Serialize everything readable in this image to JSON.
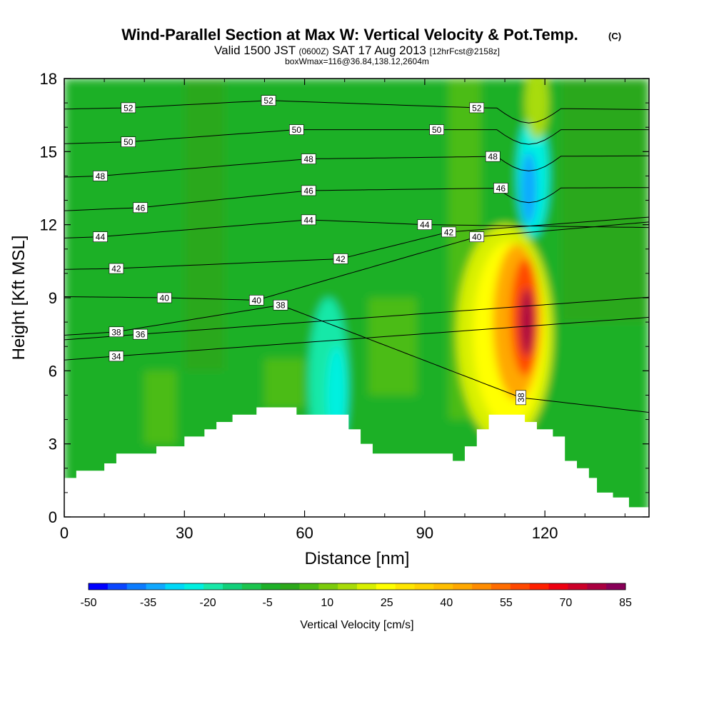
{
  "header": {
    "title": "Wind-Parallel Section at Max W: Vertical Velocity & Pot.Temp.",
    "copyright_mark": "(C)",
    "valid_prefix": "Valid 1500 JST",
    "valid_zulu": "(0600Z)",
    "valid_date": "SAT 17 Aug 2013",
    "forecast_info": "[12hrFcst@2158z]",
    "box_info": "boxWmax=116@36.84,138.12,2604m"
  },
  "chart_data": {
    "type": "contour",
    "xlabel": "Distance [nm]",
    "ylabel": "Height [Kft MSL]",
    "xlim": [
      0,
      146
    ],
    "ylim": [
      0,
      18
    ],
    "x_ticks": [
      "0",
      "30",
      "60",
      "90",
      "120"
    ],
    "y_ticks": [
      "0",
      "3",
      "6",
      "9",
      "12",
      "15",
      "18"
    ],
    "x_tick_values": [
      0,
      30,
      60,
      90,
      120
    ],
    "y_tick_values": [
      0,
      3,
      6,
      9,
      12,
      15,
      18
    ],
    "colorbar": {
      "label": "Vertical Velocity [cm/s]",
      "tick_labels": [
        "-50",
        "-35",
        "-20",
        "-5",
        "10",
        "25",
        "40",
        "55",
        "70",
        "85"
      ],
      "min": -50,
      "max": 85,
      "step": 5,
      "colors": [
        "#0000ff",
        "#0a46ff",
        "#0c7cff",
        "#10a8ff",
        "#00d8f8",
        "#00f0e0",
        "#18e8a8",
        "#12d07a",
        "#1cc44e",
        "#1eb028",
        "#2ca81a",
        "#4cbc14",
        "#7ccc0c",
        "#a8dc08",
        "#d8f000",
        "#ffff00",
        "#ffe600",
        "#ffd200",
        "#ffbe00",
        "#ffa800",
        "#ff8c00",
        "#ff6c00",
        "#ff4800",
        "#ff2000",
        "#ee0010",
        "#cc0028",
        "#aa0040",
        "#880058"
      ]
    },
    "fields": {
      "background_w": 0,
      "w_cells": [
        {
          "x0": 0,
          "x1": 146,
          "y0": 0,
          "y1": 18,
          "w": -2
        },
        {
          "x0": 30,
          "x1": 40,
          "y0": 6,
          "y1": 18,
          "w": 2
        },
        {
          "x0": 96,
          "x1": 104,
          "y0": 4,
          "y1": 18,
          "w": 5
        },
        {
          "x0": 124,
          "x1": 146,
          "y0": 8,
          "y1": 18,
          "w": 4
        },
        {
          "x0": 20,
          "x1": 28,
          "y0": 3,
          "y1": 6,
          "w": 9
        },
        {
          "x0": 50,
          "x1": 60,
          "y0": 4.5,
          "y1": 6.5,
          "w": 7
        },
        {
          "x0": 76,
          "x1": 88,
          "y0": 5,
          "y1": 9,
          "w": 5
        }
      ],
      "w_blobs": [
        {
          "cx": 66,
          "cy": 5.5,
          "rx": 5,
          "ry": 3.5,
          "w": -18
        },
        {
          "cx": 68,
          "cy": 5,
          "rx": 2.5,
          "ry": 2,
          "w": -22
        },
        {
          "cx": 117,
          "cy": 14,
          "rx": 4,
          "ry": 2.5,
          "w": -22
        },
        {
          "cx": 116,
          "cy": 13.5,
          "rx": 2,
          "ry": 1.5,
          "w": -32
        },
        {
          "cx": 118,
          "cy": 17,
          "rx": 3,
          "ry": 1.5,
          "w": 15
        },
        {
          "cx": 110,
          "cy": 7.5,
          "rx": 12,
          "ry": 4.5,
          "w": 20
        },
        {
          "cx": 111,
          "cy": 7.5,
          "rx": 9,
          "ry": 3.8,
          "w": 28
        },
        {
          "cx": 113,
          "cy": 8,
          "rx": 6,
          "ry": 3.2,
          "w": 45
        },
        {
          "cx": 115,
          "cy": 8.2,
          "rx": 3.5,
          "ry": 2.4,
          "w": 60
        },
        {
          "cx": 115.5,
          "cy": 8,
          "rx": 1.8,
          "ry": 1.4,
          "w": 80
        }
      ],
      "terrain": [
        [
          0,
          1.6
        ],
        [
          3,
          1.6
        ],
        [
          3,
          1.9
        ],
        [
          10,
          1.9
        ],
        [
          10,
          2.2
        ],
        [
          13,
          2.2
        ],
        [
          13,
          2.6
        ],
        [
          23,
          2.6
        ],
        [
          23,
          2.9
        ],
        [
          30,
          2.9
        ],
        [
          30,
          3.3
        ],
        [
          35,
          3.3
        ],
        [
          35,
          3.6
        ],
        [
          38,
          3.6
        ],
        [
          38,
          3.9
        ],
        [
          42,
          3.9
        ],
        [
          42,
          4.2
        ],
        [
          48,
          4.2
        ],
        [
          48,
          4.5
        ],
        [
          58,
          4.5
        ],
        [
          58,
          4.2
        ],
        [
          62,
          4.2
        ],
        [
          62,
          4.2
        ],
        [
          71,
          4.2
        ],
        [
          71,
          3.6
        ],
        [
          74,
          3.6
        ],
        [
          74,
          3.0
        ],
        [
          77,
          3.0
        ],
        [
          77,
          2.6
        ],
        [
          97,
          2.6
        ],
        [
          97,
          2.3
        ],
        [
          100,
          2.3
        ],
        [
          100,
          2.9
        ],
        [
          103,
          2.9
        ],
        [
          103,
          3.6
        ],
        [
          106,
          3.6
        ],
        [
          106,
          4.2
        ],
        [
          115,
          4.2
        ],
        [
          115,
          3.9
        ],
        [
          118,
          3.9
        ],
        [
          118,
          3.6
        ],
        [
          122,
          3.6
        ],
        [
          122,
          3.3
        ],
        [
          125,
          3.3
        ],
        [
          125,
          2.3
        ],
        [
          128,
          2.3
        ],
        [
          128,
          2.0
        ],
        [
          131,
          2.0
        ],
        [
          131,
          1.6
        ],
        [
          133,
          1.6
        ],
        [
          133,
          1.0
        ],
        [
          137,
          1.0
        ],
        [
          137,
          0.8
        ],
        [
          141,
          0.8
        ],
        [
          141,
          0.4
        ],
        [
          146,
          0.4
        ]
      ]
    },
    "potential_temperature_labels": [
      "52",
      "50",
      "48",
      "46",
      "44",
      "42",
      "40",
      "38",
      "36",
      "34"
    ],
    "potential_temperature_isentropes": [
      {
        "theta": 34,
        "label_at": [
          13,
          6.6
        ]
      },
      {
        "theta": 36,
        "label_at": [
          19,
          7.5
        ]
      },
      {
        "theta": 38,
        "label_at": [
          13,
          7.6
        ]
      },
      {
        "theta": 38,
        "label_at": [
          54,
          8.7
        ]
      },
      {
        "theta": 38,
        "label_at": [
          114,
          4.9
        ]
      },
      {
        "theta": 40,
        "label_at": [
          25,
          9.0
        ]
      },
      {
        "theta": 40,
        "label_at": [
          48,
          8.9
        ]
      },
      {
        "theta": 40,
        "label_at": [
          103,
          11.5
        ]
      },
      {
        "theta": 42,
        "label_at": [
          13,
          10.2
        ]
      },
      {
        "theta": 42,
        "label_at": [
          69,
          10.6
        ]
      },
      {
        "theta": 42,
        "label_at": [
          96,
          11.7
        ]
      },
      {
        "theta": 44,
        "label_at": [
          9,
          11.5
        ]
      },
      {
        "theta": 44,
        "label_at": [
          61,
          12.2
        ]
      },
      {
        "theta": 44,
        "label_at": [
          90,
          12.0
        ]
      },
      {
        "theta": 46,
        "label_at": [
          19,
          12.7
        ]
      },
      {
        "theta": 46,
        "label_at": [
          61,
          13.4
        ]
      },
      {
        "theta": 46,
        "label_at": [
          109,
          13.5
        ]
      },
      {
        "theta": 48,
        "label_at": [
          9,
          14.0
        ]
      },
      {
        "theta": 48,
        "label_at": [
          61,
          14.7
        ]
      },
      {
        "theta": 48,
        "label_at": [
          107,
          14.8
        ]
      },
      {
        "theta": 50,
        "label_at": [
          16,
          15.4
        ]
      },
      {
        "theta": 50,
        "label_at": [
          58,
          15.9
        ]
      },
      {
        "theta": 50,
        "label_at": [
          93,
          15.9
        ]
      },
      {
        "theta": 52,
        "label_at": [
          16,
          16.8
        ]
      },
      {
        "theta": 52,
        "label_at": [
          51,
          17.1
        ]
      },
      {
        "theta": 52,
        "label_at": [
          103,
          16.8
        ]
      }
    ]
  }
}
